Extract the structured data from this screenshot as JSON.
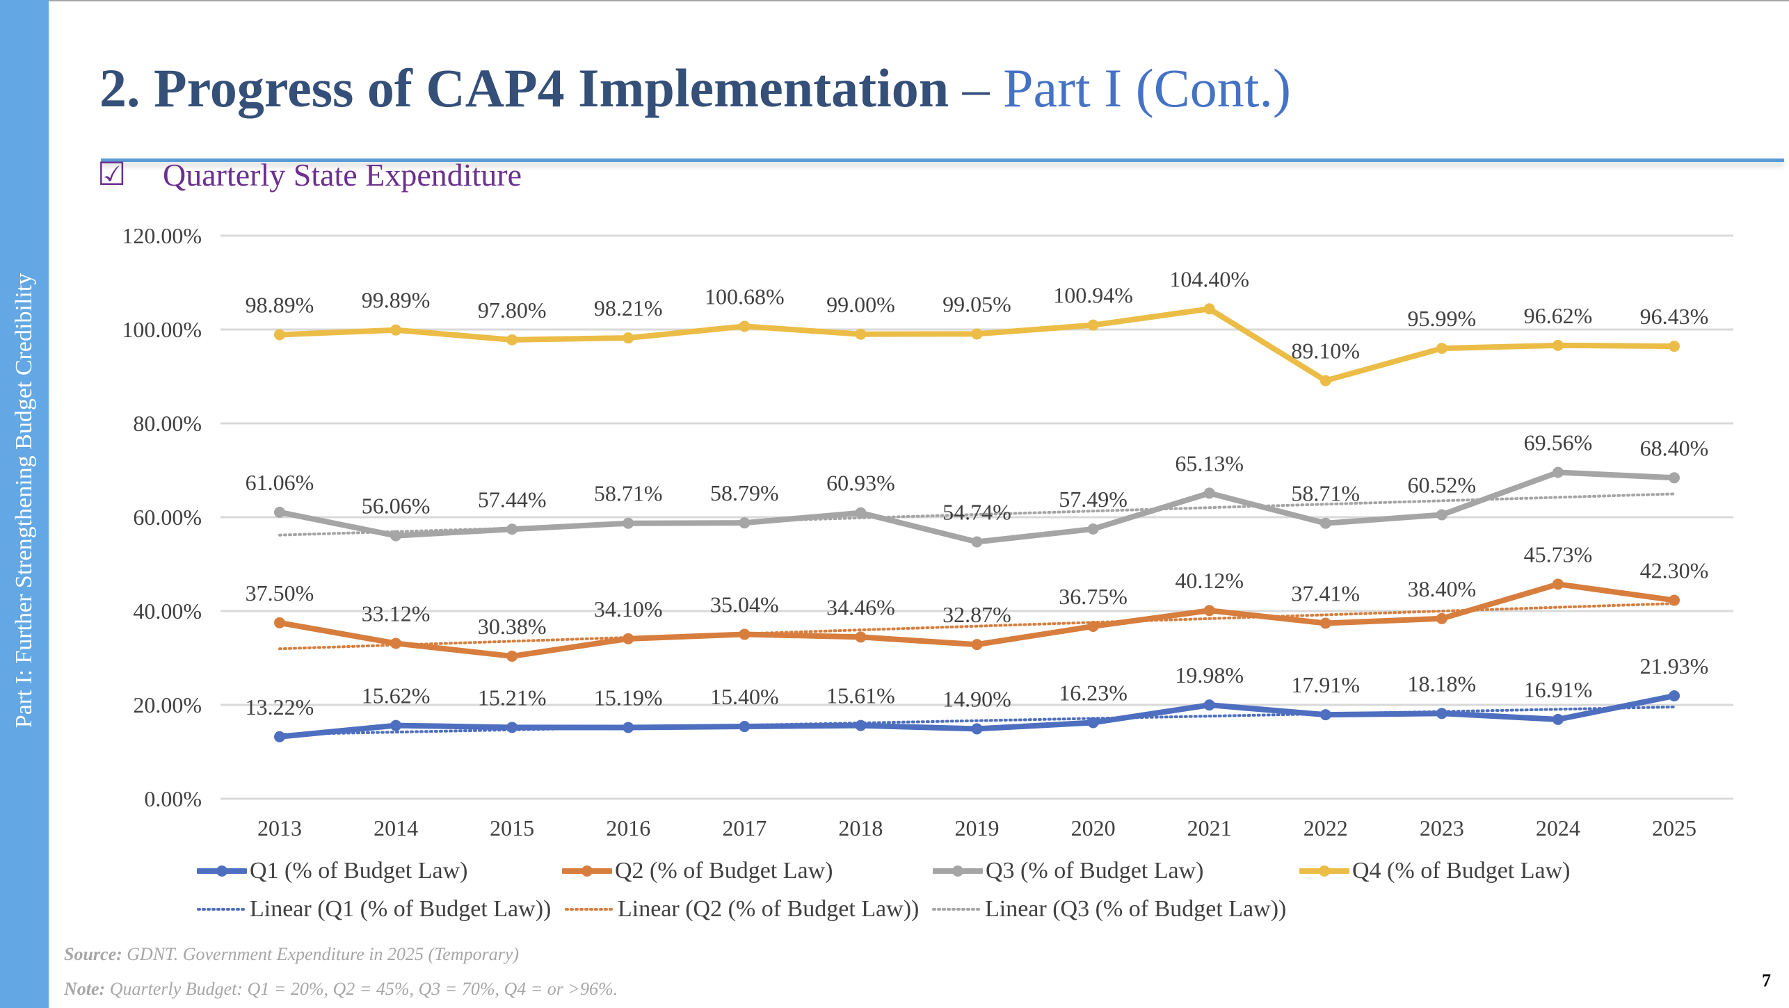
{
  "slide": {
    "sidebar_text": "Part I: Further Strengthening Budget Credibility",
    "title_main": "2. Progress of CAP4 Implementation",
    "title_separator": " – ",
    "title_cont": "Part I (Cont.)",
    "checkbox_icon": "☑",
    "subtitle": "Quarterly State Expenditure",
    "source_label": "Source:",
    "source_text": " GDNT. Government Expenditure in 2025 (Temporary)",
    "note_label": "Note:",
    "note_text": " Quarterly Budget: Q1 = 20%, Q2 = 45%, Q3 = 70%, Q4 = or >96%.",
    "page_number": "7",
    "colors": {
      "sidebar": "#63a8e4",
      "title": "#344f78",
      "title_accent": "#4472c4",
      "subtitle": "#6b2f8f"
    }
  },
  "chart_data": {
    "type": "line",
    "title": "",
    "xlabel": "",
    "ylabel": "",
    "x": [
      "2013",
      "2014",
      "2015",
      "2016",
      "2017",
      "2018",
      "2019",
      "2020",
      "2021",
      "2022",
      "2023",
      "2024",
      "2025"
    ],
    "ylim": [
      0,
      120
    ],
    "yticks": [
      0,
      20,
      40,
      60,
      80,
      100,
      120
    ],
    "ytick_labels": [
      "0.00%",
      "20.00%",
      "40.00%",
      "60.00%",
      "80.00%",
      "100.00%",
      "120.00%"
    ],
    "grid": true,
    "legend_position": "bottom",
    "series": [
      {
        "name": "Q1 (% of Budget Law)",
        "color": "#4e6fbf",
        "values": [
          13.22,
          15.62,
          15.21,
          15.19,
          15.4,
          15.61,
          14.9,
          16.23,
          19.98,
          17.91,
          18.18,
          16.91,
          21.93
        ],
        "labels": [
          "13.22%",
          "15.62%",
          "15.21%",
          "15.19%",
          "15.40%",
          "15.61%",
          "14.90%",
          "16.23%",
          "19.98%",
          "17.91%",
          "18.18%",
          "16.91%",
          "21.93%"
        ],
        "trendline": "linear",
        "trendline_name": "Linear (Q1 (% of Budget Law))"
      },
      {
        "name": "Q2 (% of Budget Law)",
        "color": "#d77e3e",
        "values": [
          37.5,
          33.12,
          30.38,
          34.1,
          35.04,
          34.46,
          32.87,
          36.75,
          40.12,
          37.41,
          38.4,
          45.73,
          42.3
        ],
        "labels": [
          "37.50%",
          "33.12%",
          "30.38%",
          "34.10%",
          "35.04%",
          "34.46%",
          "32.87%",
          "36.75%",
          "40.12%",
          "37.41%",
          "38.40%",
          "45.73%",
          "42.30%"
        ],
        "trendline": "linear",
        "trendline_name": "Linear (Q2 (% of Budget Law))"
      },
      {
        "name": "Q3 (% of Budget Law)",
        "color": "#a5a5a5",
        "values": [
          61.06,
          56.06,
          57.44,
          58.71,
          58.79,
          60.93,
          54.74,
          57.49,
          65.13,
          58.71,
          60.52,
          69.56,
          68.4
        ],
        "labels": [
          "61.06%",
          "56.06%",
          "57.44%",
          "58.71%",
          "58.79%",
          "60.93%",
          "54.74%",
          "57.49%",
          "65.13%",
          "58.71%",
          "60.52%",
          "69.56%",
          "68.40%"
        ],
        "trendline": "linear",
        "trendline_name": "Linear (Q3 (% of Budget Law))"
      },
      {
        "name": "Q4 (% of Budget Law)",
        "color": "#ebbd47",
        "values": [
          98.89,
          99.89,
          97.8,
          98.21,
          100.68,
          99.0,
          99.05,
          100.94,
          104.4,
          89.1,
          95.99,
          96.62,
          96.43
        ],
        "labels": [
          "98.89%",
          "99.89%",
          "97.80%",
          "98.21%",
          "100.68%",
          "99.00%",
          "99.05%",
          "100.94%",
          "104.40%",
          "89.10%",
          "95.99%",
          "96.62%",
          "96.43%"
        ],
        "trendline": null
      }
    ],
    "legend": [
      {
        "label": "Q1 (% of Budget Law)",
        "series": 0,
        "kind": "line"
      },
      {
        "label": "Q2 (% of Budget Law)",
        "series": 1,
        "kind": "line"
      },
      {
        "label": "Q3 (% of Budget Law)",
        "series": 2,
        "kind": "line"
      },
      {
        "label": "Q4 (% of Budget Law)",
        "series": 3,
        "kind": "line"
      },
      {
        "label": "Linear (Q1 (% of Budget Law))",
        "series": 0,
        "kind": "trend"
      },
      {
        "label": "Linear (Q2 (% of Budget Law))",
        "series": 1,
        "kind": "trend"
      },
      {
        "label": "Linear (Q3 (% of Budget Law))",
        "series": 2,
        "kind": "trend"
      }
    ]
  }
}
